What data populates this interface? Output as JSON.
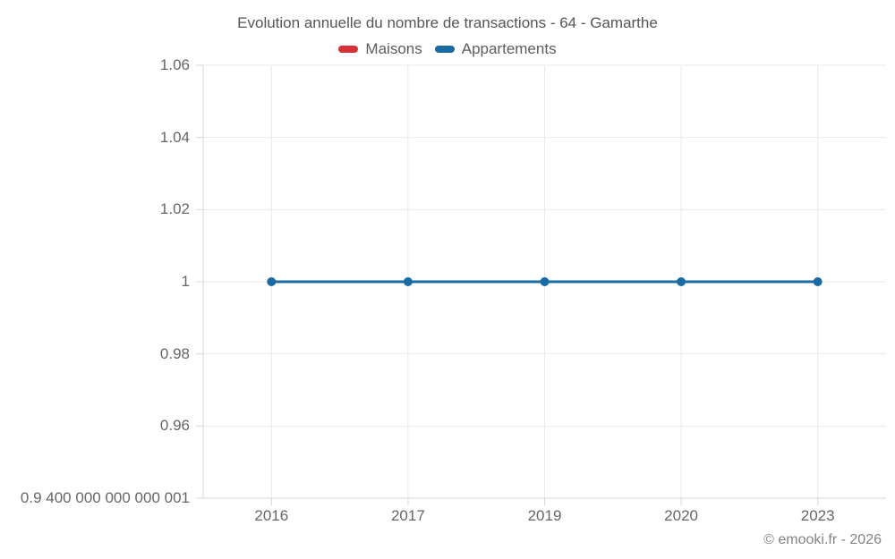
{
  "copyright": "© emooki.fr - 2026",
  "chart_data": {
    "type": "line",
    "title": "Evolution annuelle du nombre de transactions - 64 - Gamarthe",
    "categories": [
      "2016",
      "2017",
      "2019",
      "2020",
      "2023"
    ],
    "series": [
      {
        "name": "Maisons",
        "color": "#d63039",
        "values": []
      },
      {
        "name": "Appartements",
        "color": "#1a6ba3",
        "values": [
          1,
          1,
          1,
          1,
          1
        ]
      }
    ],
    "ylim": [
      0.94,
      1.06
    ],
    "yticks": {
      "values": [
        1.06,
        1.04,
        1.02,
        1,
        0.98,
        0.96,
        0.94
      ],
      "labels": [
        "1.06",
        "1.04",
        "1.02",
        "1",
        "0.98",
        "0.96",
        "0.9 400 000 000 000 001"
      ]
    },
    "xlabel": "",
    "ylabel": "",
    "grid": true,
    "legend_position": "top",
    "marker_radius": 5,
    "line_width": 3
  }
}
